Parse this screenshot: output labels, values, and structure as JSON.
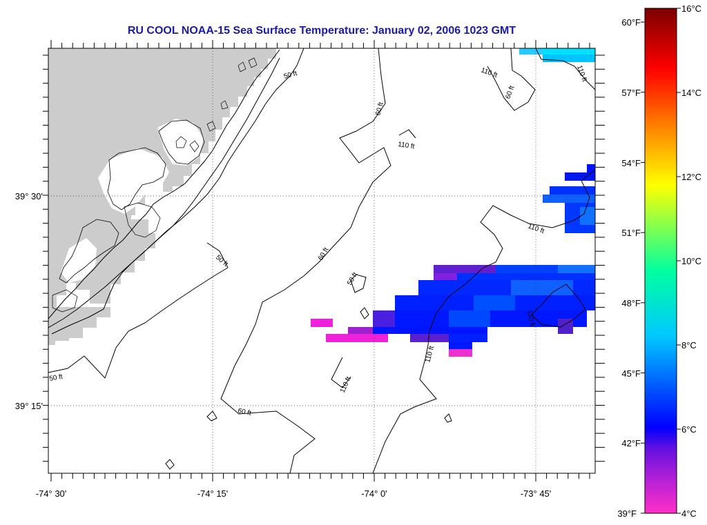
{
  "title": "RU COOL  NOAA-15  Sea Surface Temperature:  January 02, 2006 1023 GMT",
  "axes": {
    "x_ticks": [
      "-74° 30'",
      "-74° 15'",
      "-74° 0'",
      "-73° 45'"
    ],
    "y_ticks": [
      "39° 30'",
      "39° 15'"
    ]
  },
  "depth_contours": {
    "labels_50": [
      "50 ft",
      "50 ft",
      "50 ft",
      "50 ft"
    ],
    "labels_60": [
      "60 ft",
      "60 ft",
      "60 ft",
      "60 ft"
    ],
    "labels_110": [
      "110 ft",
      "110 ft",
      "110 ft",
      "110 ft",
      "110 ft",
      "110 ft",
      "110 ft"
    ]
  },
  "colorbar": {
    "celsius": [
      "16°C",
      "14°C",
      "12°C",
      "10°C",
      "8°C",
      "6°C",
      "4°C"
    ],
    "fahrenheit": [
      "60°F",
      "57°F",
      "54°F",
      "51°F",
      "48°F",
      "45°F",
      "42°F",
      "39°F"
    ],
    "range_c": [
      4,
      16
    ],
    "stops": [
      "#ff30c8",
      "#8a10d0",
      "#0000ff",
      "#00c8ff",
      "#00ffa0",
      "#ffff00",
      "#ff8800",
      "#ff0000",
      "#7a0000"
    ]
  },
  "colors": {
    "land": "#cccccc",
    "title": "#1a1aa8"
  }
}
